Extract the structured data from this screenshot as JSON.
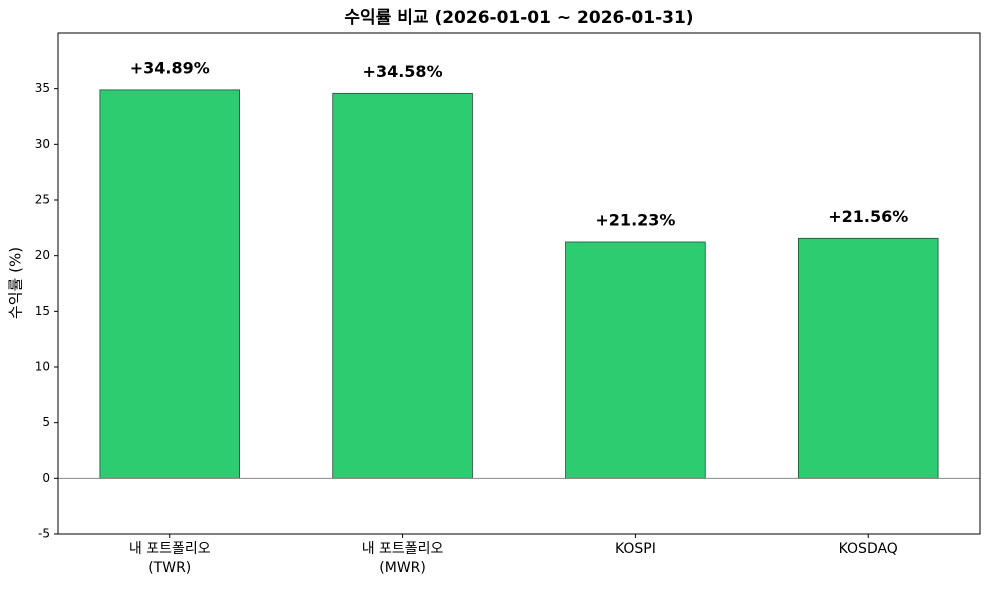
{
  "chart_data": {
    "type": "bar",
    "title": "수익률 비교 (2026-01-01 ~ 2026-01-31)",
    "y_label": "수익률 (%)",
    "categories": [
      "내 포트폴리오\n(TWR)",
      "내 포트폴리오\n(MWR)",
      "KOSPI",
      "KOSDAQ"
    ],
    "values": [
      34.89,
      34.58,
      21.23,
      21.56
    ],
    "value_labels": [
      "+34.89%",
      "+34.58%",
      "+21.23%",
      "+21.56%"
    ],
    "color": "#2ecc71",
    "ylim": [
      -5,
      40
    ],
    "yticks": [
      -5,
      0,
      5,
      10,
      15,
      20,
      25,
      30,
      35
    ]
  }
}
